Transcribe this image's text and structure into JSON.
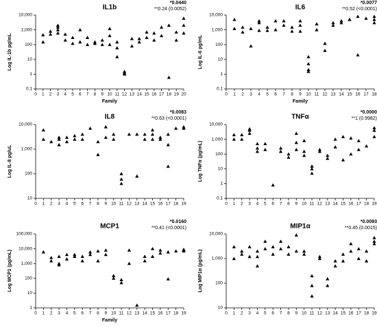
{
  "chart_data": [
    {
      "type": "scatter",
      "title": "IL1b",
      "y_label": "Log IL-1b pg/mL",
      "x_label": "Family",
      "annotations": [
        "*0.0440",
        "**0.24 (0.0052)"
      ],
      "log_y": true,
      "color": "#000000",
      "xlim": [
        0,
        20
      ],
      "xticks": [
        0,
        1,
        2,
        3,
        4,
        5,
        6,
        7,
        8,
        9,
        10,
        11,
        12,
        13,
        14,
        15,
        16,
        17,
        18,
        19,
        20
      ],
      "ylim": [
        0.1,
        10000
      ],
      "yticks": [
        0.1,
        1,
        10,
        100,
        {
          "value": 1000,
          "label": "1,000"
        },
        {
          "value": 10000,
          "label": "10,000"
        }
      ],
      "x": [
        1,
        1,
        2,
        2,
        3,
        3,
        3,
        3,
        4,
        4,
        5,
        5,
        6,
        6,
        7,
        7,
        8,
        8,
        9,
        9,
        10,
        10,
        10,
        11,
        11,
        11,
        12,
        12,
        12,
        13,
        13,
        14,
        14,
        15,
        15,
        16,
        16,
        17,
        17,
        18,
        18,
        19,
        19,
        20,
        20,
        20
      ],
      "values": [
        450,
        150,
        500,
        800,
        2000,
        1500,
        1000,
        600,
        500,
        200,
        300,
        120,
        1000,
        150,
        300,
        100,
        150,
        120,
        200,
        100,
        1200,
        400,
        100,
        15,
        60,
        150,
        1.5,
        1.2,
        1,
        250,
        80,
        250,
        150,
        700,
        300,
        600,
        200,
        1500,
        400,
        2000,
        0.6,
        700,
        200,
        6000,
        2000,
        600
      ]
    },
    {
      "type": "scatter",
      "title": "IL6",
      "y_label": "Log IL-6 pg/mL",
      "x_label": "Family",
      "annotations": [
        "*0.0077",
        "**0.52 (<0.0001)"
      ],
      "log_y": true,
      "color": "#000000",
      "xlim": [
        0,
        18
      ],
      "xticks": [
        0,
        1,
        2,
        3,
        4,
        5,
        6,
        7,
        8,
        9,
        10,
        11,
        12,
        13,
        14,
        15,
        16,
        17,
        18
      ],
      "ylim": [
        0.1,
        10000
      ],
      "yticks": [
        0.1,
        1,
        10,
        100,
        {
          "value": 1000,
          "label": "1,000"
        },
        {
          "value": 10000,
          "label": "10,000"
        }
      ],
      "x": [
        1,
        1,
        2,
        2,
        3,
        3,
        4,
        4,
        4,
        5,
        5,
        6,
        6,
        7,
        7,
        8,
        8,
        9,
        9,
        9,
        10,
        10,
        10,
        10,
        11,
        11,
        12,
        12,
        13,
        13,
        14,
        14,
        15,
        15,
        16,
        16,
        17,
        18,
        18,
        18
      ],
      "values": [
        5000,
        1200,
        1500,
        700,
        1200,
        80,
        4000,
        3000,
        900,
        1500,
        900,
        4000,
        1000,
        4000,
        2000,
        1500,
        800,
        4000,
        2000,
        800,
        15,
        5,
        2,
        1.5,
        2500,
        1000,
        120,
        40,
        3000,
        2000,
        4000,
        3000,
        5000,
        5000,
        8000,
        20,
        6000,
        8000,
        5000,
        3000
      ]
    },
    {
      "type": "scatter",
      "title": "IL8",
      "y_label": "Log IL-8 pg/uL",
      "annotations": [
        "*0.0083",
        "**0.63 (<0.0001)"
      ],
      "log_y": true,
      "color": "#000000",
      "xlim": [
        0,
        19
      ],
      "xticks": [
        0,
        1,
        2,
        3,
        4,
        5,
        6,
        7,
        8,
        9,
        10,
        11,
        12,
        13,
        14,
        15,
        16,
        17,
        18,
        19
      ],
      "ylim": [
        10,
        10000
      ],
      "yticks": [
        10,
        100,
        {
          "value": 1000,
          "label": "1,000"
        },
        {
          "value": 10000,
          "label": "10,000"
        }
      ],
      "x": [
        1,
        1,
        2,
        3,
        3,
        3,
        4,
        4,
        5,
        5,
        6,
        6,
        7,
        8,
        8,
        9,
        9,
        10,
        10,
        11,
        11,
        11,
        12,
        13,
        13,
        14,
        14,
        15,
        15,
        15,
        16,
        16,
        17,
        17,
        17,
        18,
        19,
        19
      ],
      "values": [
        6000,
        2500,
        2000,
        3000,
        2500,
        1500,
        3000,
        2000,
        3500,
        2500,
        4000,
        2500,
        7000,
        2000,
        600,
        8000,
        3000,
        4000,
        2500,
        100,
        60,
        40,
        4000,
        80,
        4000,
        4000,
        2500,
        6000,
        4000,
        2500,
        3000,
        2500,
        4000,
        1500,
        200,
        7000,
        8000,
        7000
      ]
    },
    {
      "type": "scatter",
      "title": "TNFα",
      "y_label": "Log TNFα (pg/mL)",
      "annotations": [
        "*0.0000",
        "**1 (0.9982)"
      ],
      "log_y": true,
      "color": "#000000",
      "xlim": [
        0,
        19
      ],
      "xticks": [
        0,
        1,
        2,
        3,
        4,
        5,
        6,
        7,
        8,
        9,
        10,
        11,
        12,
        13,
        14,
        15,
        16,
        17,
        18,
        19
      ],
      "ylim": [
        0.1,
        10000
      ],
      "yticks": [
        0.1,
        1,
        10,
        100,
        {
          "value": 1000,
          "label": "1,000"
        },
        {
          "value": 10000,
          "label": "10,000"
        }
      ],
      "x": [
        1,
        1,
        2,
        2,
        3,
        3,
        3,
        4,
        4,
        4,
        5,
        5,
        6,
        7,
        7,
        8,
        8,
        9,
        9,
        9,
        10,
        10,
        10,
        11,
        11,
        11,
        12,
        12,
        13,
        13,
        14,
        14,
        15,
        15,
        16,
        16,
        17,
        17,
        18,
        19,
        19,
        19
      ],
      "values": [
        2000,
        1000,
        2000,
        1000,
        5000,
        4000,
        2500,
        500,
        250,
        150,
        500,
        200,
        0.8,
        250,
        150,
        100,
        60,
        2500,
        600,
        200,
        800,
        150,
        80,
        15,
        10,
        5,
        200,
        150,
        80,
        50,
        1000,
        300,
        1500,
        40,
        1200,
        100,
        800,
        200,
        350,
        6000,
        4000,
        1500
      ]
    },
    {
      "type": "scatter",
      "title": "MCP1",
      "y_label": "Log MCP1 (pg/mL)",
      "x_label": "Family",
      "annotations": [
        "*0.0160",
        "**0.41 (<0.0001)"
      ],
      "log_y": true,
      "color": "#000000",
      "xlim": [
        0,
        19
      ],
      "xticks": [
        0,
        1,
        2,
        3,
        4,
        5,
        6,
        7,
        8,
        9,
        10,
        11,
        12,
        13,
        14,
        15,
        16,
        17,
        18,
        19
      ],
      "ylim": [
        1,
        100000
      ],
      "yticks": [
        1,
        10,
        100,
        {
          "value": 1000,
          "label": "1,000"
        },
        {
          "value": 10000,
          "label": "10,000"
        },
        {
          "value": 100000,
          "label": "100,000"
        }
      ],
      "x": [
        1,
        2,
        2,
        3,
        3,
        3,
        4,
        4,
        5,
        5,
        6,
        6,
        7,
        7,
        8,
        8,
        9,
        9,
        10,
        10,
        11,
        11,
        12,
        12,
        13,
        14,
        14,
        15,
        15,
        16,
        16,
        17,
        17,
        18,
        19,
        19,
        19
      ],
      "values": [
        6000,
        2500,
        1500,
        3000,
        1000,
        800,
        4000,
        2000,
        4000,
        3000,
        3000,
        1500,
        6000,
        4000,
        7000,
        1500,
        8000,
        4000,
        150,
        100,
        80,
        50,
        8000,
        1000,
        1.5,
        3000,
        1500,
        10000,
        3000,
        8000,
        5000,
        6000,
        90,
        7000,
        9000,
        8000,
        7000
      ]
    },
    {
      "type": "scatter",
      "title": "MIP1α",
      "y_label": "Log MIP1α (pg/mL)",
      "annotations": [
        "*0.0093",
        "**0.45 (0.0015)"
      ],
      "log_y": true,
      "color": "#000000",
      "xlim": [
        0,
        19
      ],
      "xticks": [
        0,
        1,
        2,
        3,
        4,
        5,
        6,
        7,
        8,
        9,
        10,
        11,
        12,
        13,
        14,
        15,
        16,
        17,
        18,
        19
      ],
      "ylim": [
        10,
        10000
      ],
      "yticks": [
        10,
        100,
        {
          "value": 1000,
          "label": "1,000"
        },
        {
          "value": 10000,
          "label": "10,000"
        }
      ],
      "x": [
        1,
        1,
        2,
        2,
        3,
        3,
        4,
        4,
        4,
        5,
        5,
        6,
        6,
        7,
        7,
        8,
        8,
        9,
        9,
        10,
        10,
        11,
        11,
        11,
        12,
        12,
        13,
        13,
        14,
        14,
        15,
        15,
        16,
        16,
        17,
        17,
        18,
        18,
        19,
        19,
        19
      ],
      "values": [
        3000,
        1000,
        2000,
        1500,
        3000,
        1200,
        2000,
        1200,
        500,
        5000,
        2500,
        3000,
        1500,
        5000,
        2500,
        3000,
        1500,
        9000,
        2000,
        2000,
        1500,
        200,
        80,
        30,
        1200,
        1000,
        150,
        80,
        500,
        800,
        1500,
        800,
        4000,
        2000,
        2500,
        1000,
        2000,
        800,
        7000,
        5000,
        4000
      ]
    }
  ]
}
